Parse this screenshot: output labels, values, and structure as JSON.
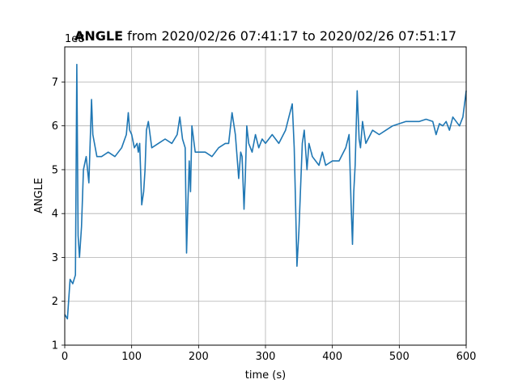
{
  "chart_data": {
    "type": "line",
    "title_bold": "ANGLE",
    "title_rest": " from 2020/02/26 07:41:17 to 2020/02/26 07:51:17",
    "xlabel": "time (s)",
    "ylabel": "ANGLE",
    "offset_text": "1e8",
    "xlim": [
      0,
      600
    ],
    "ylim": [
      1,
      7.8
    ],
    "xticks": [
      0,
      100,
      200,
      300,
      400,
      500,
      600
    ],
    "xtick_labels": [
      "0",
      "100",
      "200",
      "300",
      "400",
      "500",
      "600"
    ],
    "yticks": [
      1,
      2,
      3,
      4,
      5,
      6,
      7
    ],
    "ytick_labels": [
      "1",
      "2",
      "3",
      "4",
      "5",
      "6",
      "7"
    ],
    "grid": true,
    "color": "#1f77b4",
    "series": [
      {
        "x": [
          0,
          4,
          8,
          12,
          16,
          18,
          19,
          20,
          22,
          25,
          28,
          32,
          36,
          40,
          42,
          48,
          55,
          65,
          75,
          85,
          92,
          95,
          97,
          100,
          104,
          108,
          110,
          112,
          115,
          118,
          120,
          122,
          125,
          130,
          140,
          150,
          160,
          168,
          172,
          176,
          180,
          182,
          184,
          186,
          188,
          190,
          195,
          200,
          210,
          220,
          230,
          240,
          245,
          250,
          255,
          258,
          260,
          263,
          265,
          268,
          270,
          272,
          275,
          280,
          285,
          290,
          295,
          300,
          310,
          320,
          330,
          335,
          340,
          343,
          345,
          347,
          350,
          355,
          358,
          362,
          365,
          370,
          375,
          380,
          385,
          390,
          400,
          410,
          420,
          425,
          428,
          430,
          432,
          434,
          437,
          440,
          442,
          445,
          450,
          460,
          470,
          480,
          490,
          500,
          510,
          520,
          530,
          540,
          550,
          555,
          560,
          565,
          570,
          575,
          580,
          585,
          590,
          595,
          600
        ],
        "y": [
          1.7,
          1.6,
          2.5,
          2.4,
          2.6,
          7.4,
          5.5,
          3.5,
          3.0,
          3.7,
          5.0,
          5.3,
          4.7,
          6.6,
          5.8,
          5.3,
          5.3,
          5.4,
          5.3,
          5.5,
          5.8,
          6.3,
          5.9,
          5.8,
          5.5,
          5.6,
          5.4,
          5.6,
          4.2,
          4.5,
          5.0,
          5.9,
          6.1,
          5.5,
          5.6,
          5.7,
          5.6,
          5.8,
          6.2,
          5.7,
          5.5,
          3.1,
          4.2,
          5.2,
          4.5,
          6.0,
          5.4,
          5.4,
          5.4,
          5.3,
          5.5,
          5.6,
          5.6,
          6.3,
          5.8,
          5.2,
          4.8,
          5.4,
          5.3,
          4.1,
          4.9,
          6.0,
          5.6,
          5.4,
          5.8,
          5.5,
          5.7,
          5.6,
          5.8,
          5.6,
          5.9,
          6.2,
          6.5,
          5.5,
          4.2,
          2.8,
          3.6,
          5.6,
          5.9,
          5.0,
          5.6,
          5.3,
          5.2,
          5.1,
          5.4,
          5.1,
          5.2,
          5.2,
          5.5,
          5.8,
          4.2,
          3.3,
          4.5,
          5.1,
          6.8,
          5.7,
          5.5,
          6.1,
          5.6,
          5.9,
          5.8,
          5.9,
          6.0,
          6.05,
          6.1,
          6.1,
          6.1,
          6.15,
          6.1,
          5.8,
          6.05,
          6.0,
          6.1,
          5.9,
          6.2,
          6.1,
          6.0,
          6.2,
          6.8
        ]
      }
    ]
  }
}
